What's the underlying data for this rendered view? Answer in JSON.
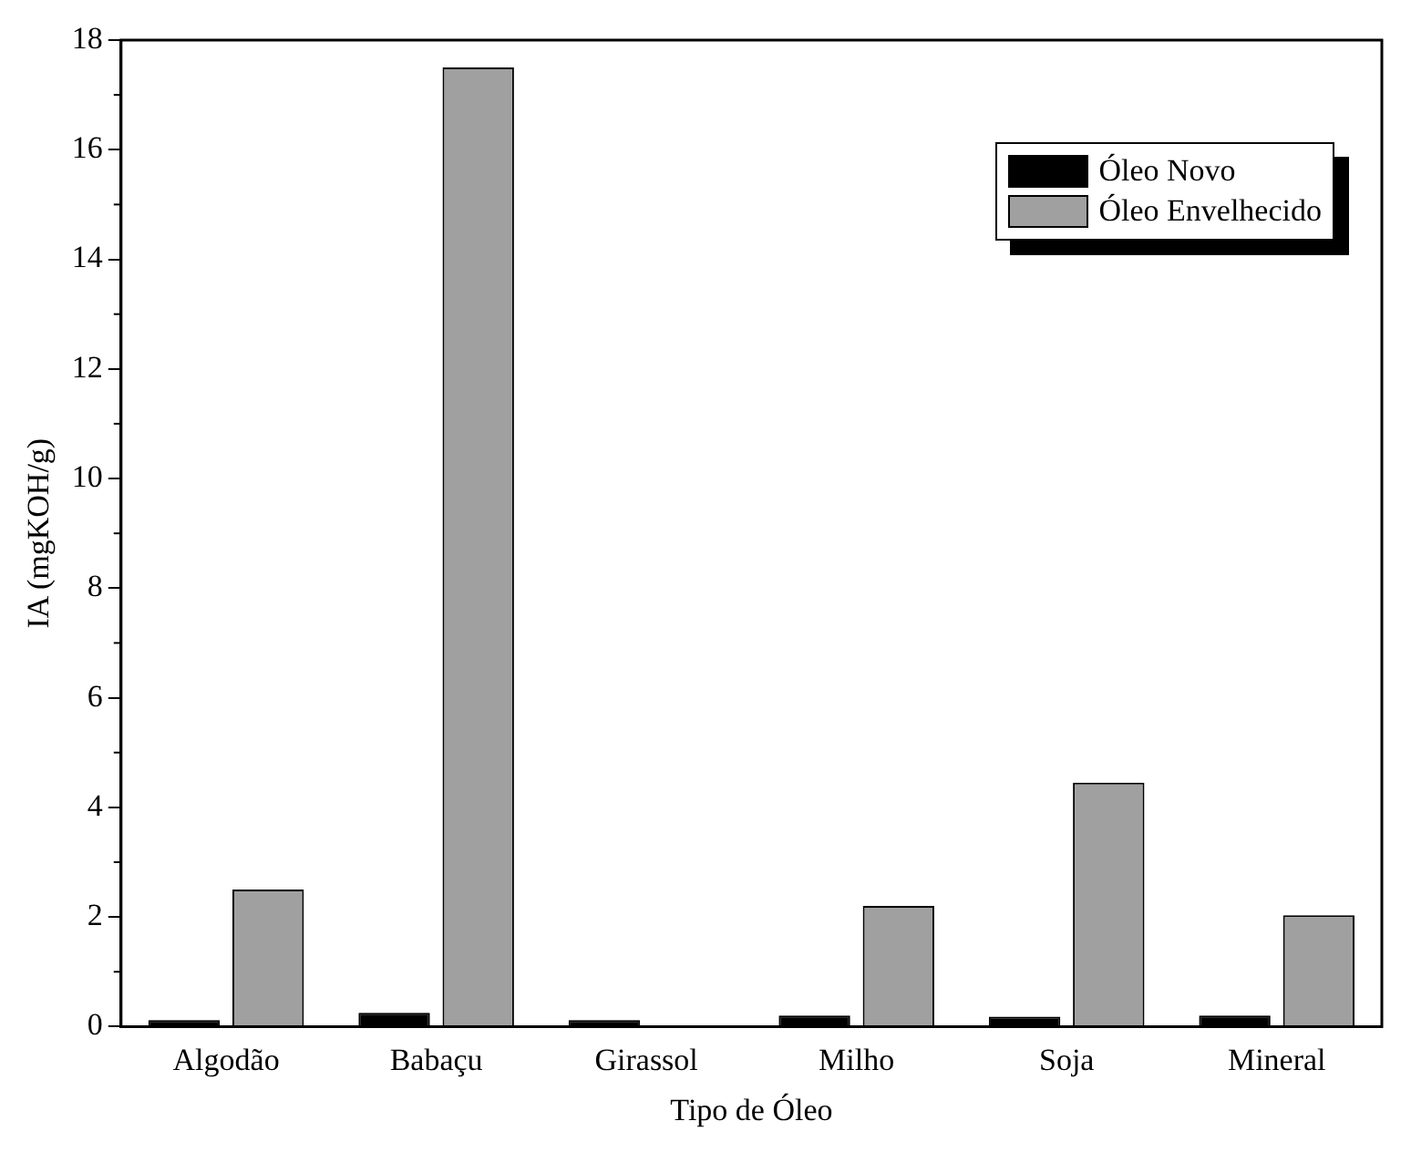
{
  "chart_data": {
    "type": "bar",
    "xlabel": "Tipo de Óleo",
    "ylabel": "IA (mgKOH/g)",
    "categories": [
      "Algodão",
      "Babaçu",
      "Girassol",
      "Milho",
      "Soja",
      "Mineral"
    ],
    "series": [
      {
        "name": "Óleo Novo",
        "color": "#000000",
        "values": [
          0.12,
          0.25,
          0.12,
          0.2,
          0.18,
          0.2
        ]
      },
      {
        "name": "Óleo Envelhecido",
        "color": "#a0a0a0",
        "values": [
          2.5,
          17.5,
          null,
          2.2,
          4.45,
          2.03
        ]
      }
    ],
    "ylim": [
      0,
      18
    ],
    "yticks": [
      0,
      2,
      4,
      6,
      8,
      10,
      12,
      14,
      16,
      18
    ],
    "grid": false,
    "legend": "top right"
  }
}
